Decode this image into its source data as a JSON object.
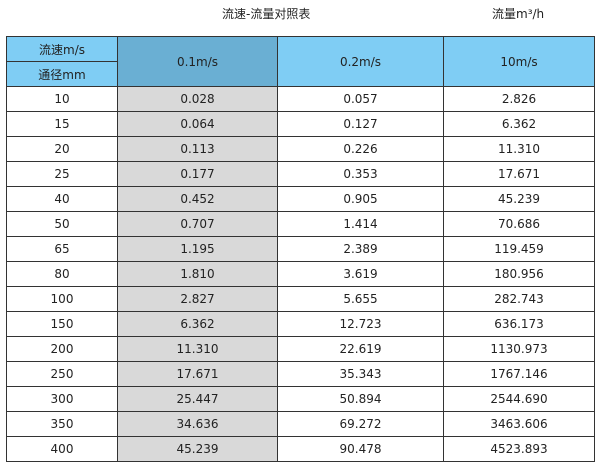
{
  "title": "流速-流量对照表",
  "unit_label": "流量m³/h",
  "header": {
    "velocity_label": "流速m/s",
    "diameter_label": "通径mm",
    "columns": [
      "0.1m/s",
      "0.2m/s",
      "10m/s"
    ]
  },
  "rows": [
    [
      "10",
      "0.028",
      "0.057",
      "2.826"
    ],
    [
      "15",
      "0.064",
      "0.127",
      "6.362"
    ],
    [
      "20",
      "0.113",
      "0.226",
      "11.310"
    ],
    [
      "25",
      "0.177",
      "0.353",
      "17.671"
    ],
    [
      "40",
      "0.452",
      "0.905",
      "45.239"
    ],
    [
      "50",
      "0.707",
      "1.414",
      "70.686"
    ],
    [
      "65",
      "1.195",
      "2.389",
      "119.459"
    ],
    [
      "80",
      "1.810",
      "3.619",
      "180.956"
    ],
    [
      "100",
      "2.827",
      "5.655",
      "282.743"
    ],
    [
      "150",
      "6.362",
      "12.723",
      "636.173"
    ],
    [
      "200",
      "11.310",
      "22.619",
      "1130.973"
    ],
    [
      "250",
      "17.671",
      "35.343",
      "1767.146"
    ],
    [
      "300",
      "25.447",
      "50.894",
      "2544.690"
    ],
    [
      "350",
      "34.636",
      "69.272",
      "3463.606"
    ],
    [
      "400",
      "45.239",
      "90.478",
      "4523.893"
    ]
  ],
  "colors": {
    "header": "#7fcdf4",
    "highlight_header": "#6aafd3",
    "highlight_cells": "#d9d9d9"
  }
}
